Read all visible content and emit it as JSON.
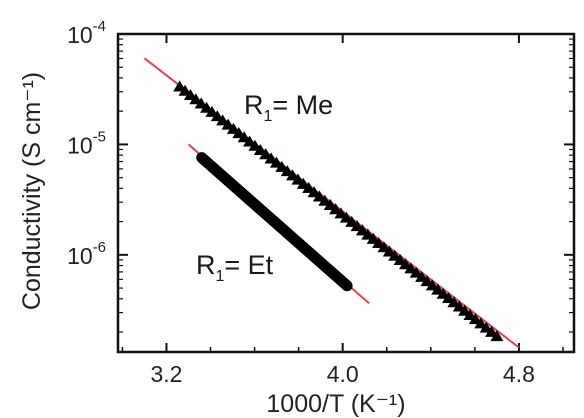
{
  "chart_data": {
    "type": "scatter",
    "xlabel": "1000/T (K⁻¹)",
    "ylabel": "Conductivity (S cm⁻¹)",
    "xlim": [
      2.98,
      5.05
    ],
    "ylim_log10": [
      -6.88,
      -4.0
    ],
    "y_scale": "log",
    "x_ticks": [
      {
        "value": 3.2,
        "label": "3.2"
      },
      {
        "value": 4.0,
        "label": "4.0"
      },
      {
        "value": 4.8,
        "label": "4.8"
      }
    ],
    "y_ticks": [
      {
        "value_log10": -4,
        "label": "10",
        "exponent": "-4"
      },
      {
        "value_log10": -5,
        "label": "10",
        "exponent": "-5"
      },
      {
        "value_log10": -6,
        "label": "10",
        "exponent": "-6"
      }
    ],
    "grid": false,
    "legend": "none",
    "series": [
      {
        "name": "R₁ = Me",
        "label_text": {
          "prefix": "R",
          "subscript": "1",
          "suffix": "= Me"
        },
        "marker": "triangle",
        "color": "#000000",
        "fit_color": "#e8434a",
        "x_range": [
          3.26,
          4.7
        ],
        "log10_y_range": [
          -4.48,
          -6.74
        ],
        "n_points": 60,
        "fit_line": {
          "x": [
            3.1,
            4.8
          ],
          "log10_y": [
            -4.22,
            -6.84
          ]
        }
      },
      {
        "name": "R₁ = Et",
        "label_text": {
          "prefix": "R",
          "subscript": "1",
          "suffix": "= Et"
        },
        "marker": "circle",
        "color": "#000000",
        "fit_color": "#e8434a",
        "x_range": [
          3.36,
          4.02
        ],
        "log10_y_range": [
          -5.12,
          -6.28
        ],
        "n_points": 140,
        "fit_line": {
          "x": [
            3.3,
            4.12
          ],
          "log10_y": [
            -5.0,
            -6.44
          ]
        }
      }
    ]
  }
}
